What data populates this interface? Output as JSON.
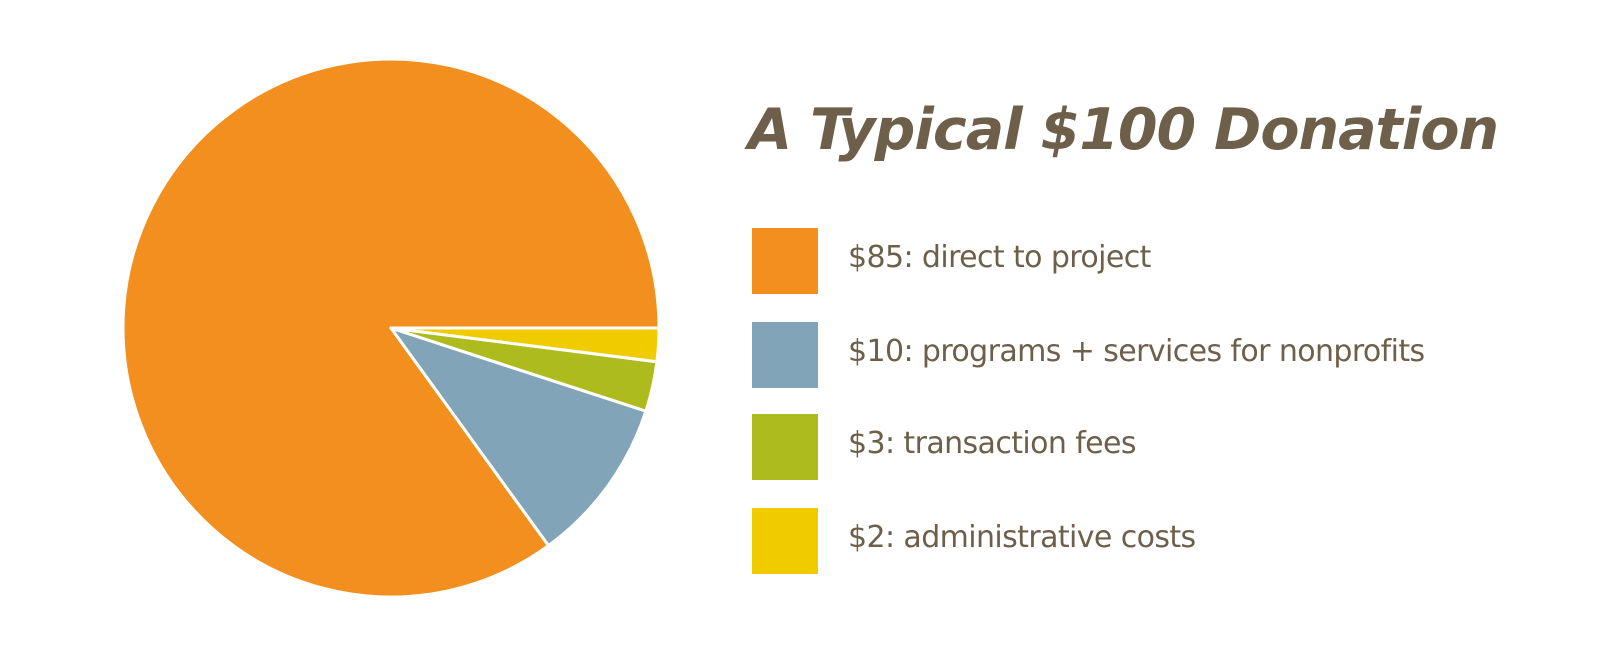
{
  "chart_data": {
    "type": "pie",
    "title": "A Typical $100 Donation",
    "categories": [
      "$85: direct to project",
      "$10: programs + services for nonprofits",
      "$3: transaction fees",
      "$2: administrative costs"
    ],
    "values": [
      85,
      10,
      3,
      2
    ],
    "colors": [
      "#f28f1f",
      "#81a4b9",
      "#adbc1c",
      "#efcb00"
    ],
    "legend_placement": "right"
  }
}
